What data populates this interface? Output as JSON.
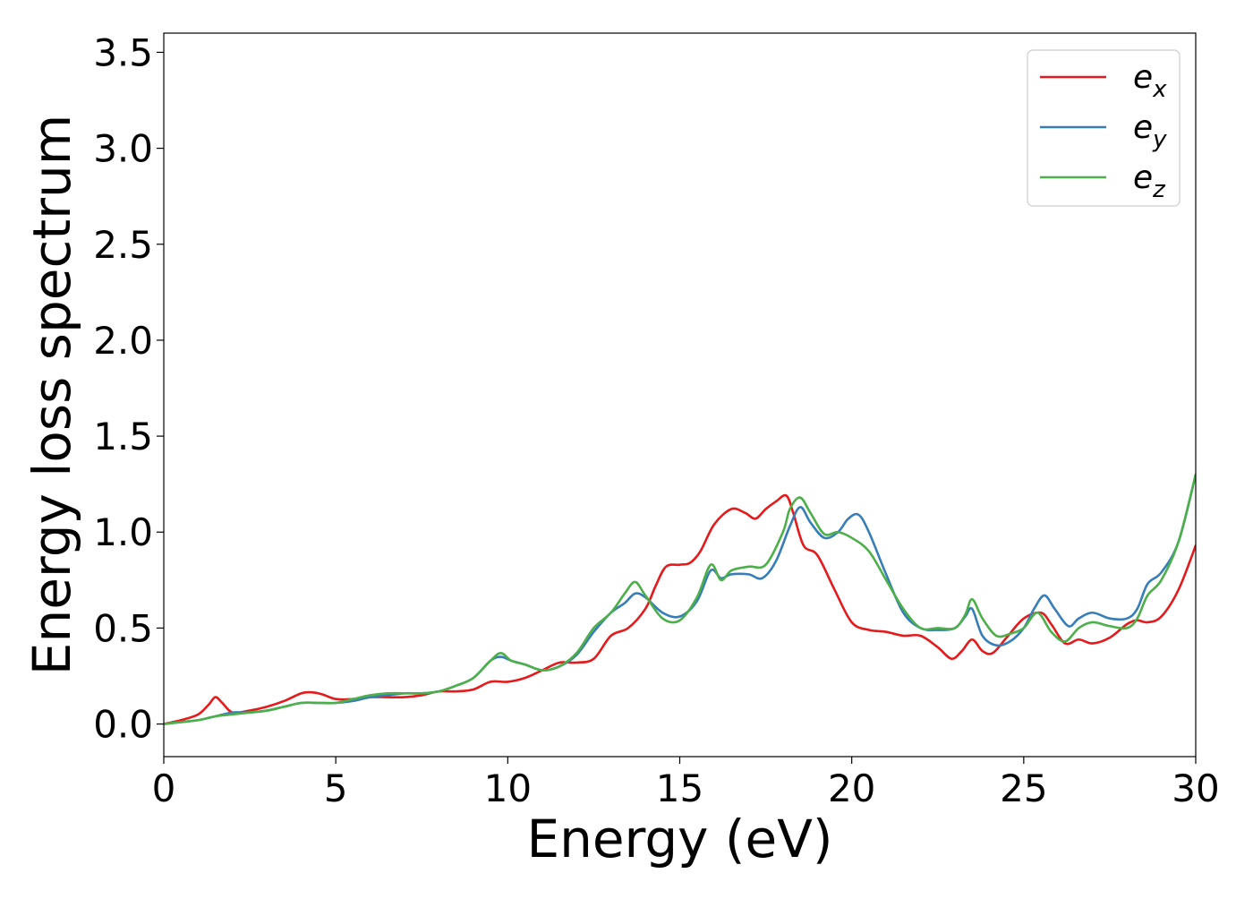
{
  "chart_data": {
    "type": "line",
    "title": "",
    "xlabel": "Energy (eV)",
    "ylabel": "Energy loss spectrum",
    "xlim": [
      0,
      30
    ],
    "ylim": [
      -0.17,
      3.6
    ],
    "xticks": [
      0,
      5,
      10,
      15,
      20,
      25,
      30
    ],
    "yticks": [
      0.0,
      0.5,
      1.0,
      1.5,
      2.0,
      2.5,
      3.0,
      3.5
    ],
    "xtick_labels": [
      "0",
      "5",
      "10",
      "15",
      "20",
      "25",
      "30"
    ],
    "ytick_labels": [
      "0.0",
      "0.5",
      "1.0",
      "1.5",
      "2.0",
      "2.5",
      "3.0",
      "3.5"
    ],
    "grid": false,
    "legend_position": "top-right",
    "series": [
      {
        "name": "e_x",
        "label_base": "e",
        "label_sub": "x",
        "color": "#e41a1c",
        "x": [
          0,
          0.5,
          1.0,
          1.3,
          1.5,
          1.7,
          2.0,
          2.5,
          3.0,
          3.5,
          4.0,
          4.3,
          4.6,
          5.0,
          5.5,
          6.0,
          6.5,
          7.0,
          7.5,
          8.0,
          8.5,
          9.0,
          9.5,
          10.0,
          10.5,
          11.0,
          11.5,
          12.0,
          12.5,
          13.0,
          13.5,
          14.0,
          14.3,
          14.6,
          15.0,
          15.3,
          15.6,
          16.0,
          16.5,
          16.9,
          17.2,
          17.5,
          17.8,
          18.1,
          18.3,
          18.6,
          19.0,
          19.5,
          20.0,
          20.5,
          21.0,
          21.5,
          22.0,
          22.5,
          22.9,
          23.2,
          23.5,
          23.8,
          24.1,
          24.5,
          25.0,
          25.5,
          25.8,
          26.2,
          26.6,
          27.0,
          27.5,
          28.0,
          28.3,
          28.6,
          29.0,
          29.5,
          30.0
        ],
        "y": [
          0.0,
          0.02,
          0.05,
          0.1,
          0.14,
          0.11,
          0.06,
          0.07,
          0.09,
          0.12,
          0.16,
          0.165,
          0.155,
          0.13,
          0.13,
          0.14,
          0.14,
          0.14,
          0.15,
          0.17,
          0.17,
          0.18,
          0.22,
          0.22,
          0.24,
          0.28,
          0.32,
          0.32,
          0.34,
          0.46,
          0.5,
          0.6,
          0.72,
          0.82,
          0.83,
          0.84,
          0.9,
          1.04,
          1.12,
          1.1,
          1.07,
          1.12,
          1.16,
          1.19,
          1.1,
          0.93,
          0.88,
          0.7,
          0.53,
          0.49,
          0.48,
          0.46,
          0.46,
          0.4,
          0.34,
          0.38,
          0.44,
          0.38,
          0.37,
          0.45,
          0.55,
          0.58,
          0.52,
          0.42,
          0.44,
          0.42,
          0.45,
          0.52,
          0.54,
          0.53,
          0.56,
          0.7,
          0.93
        ]
      },
      {
        "name": "e_y",
        "label_base": "e",
        "label_sub": "y",
        "color": "#377eb8",
        "x": [
          0,
          0.5,
          1.0,
          1.5,
          2.0,
          2.5,
          3.0,
          3.5,
          4.0,
          4.5,
          5.0,
          5.5,
          6.0,
          6.5,
          7.0,
          7.5,
          8.0,
          8.5,
          9.0,
          9.5,
          9.8,
          10.1,
          10.5,
          11.0,
          11.5,
          12.0,
          12.5,
          13.0,
          13.4,
          13.7,
          14.0,
          14.5,
          15.0,
          15.5,
          15.9,
          16.2,
          16.5,
          17.0,
          17.4,
          17.8,
          18.2,
          18.5,
          18.8,
          19.2,
          19.6,
          19.9,
          20.2,
          20.5,
          21.0,
          21.5,
          22.0,
          22.5,
          23.0,
          23.3,
          23.5,
          23.8,
          24.2,
          24.6,
          25.0,
          25.3,
          25.6,
          25.9,
          26.3,
          26.6,
          27.0,
          27.5,
          28.0,
          28.3,
          28.6,
          29.0,
          29.5,
          30.0
        ],
        "y": [
          0.0,
          0.01,
          0.02,
          0.04,
          0.06,
          0.06,
          0.07,
          0.09,
          0.11,
          0.11,
          0.11,
          0.12,
          0.14,
          0.15,
          0.16,
          0.16,
          0.17,
          0.2,
          0.24,
          0.33,
          0.35,
          0.33,
          0.31,
          0.28,
          0.3,
          0.36,
          0.48,
          0.58,
          0.63,
          0.68,
          0.66,
          0.58,
          0.56,
          0.64,
          0.8,
          0.76,
          0.78,
          0.78,
          0.76,
          0.85,
          1.03,
          1.13,
          1.05,
          0.97,
          1.0,
          1.07,
          1.09,
          1.0,
          0.78,
          0.58,
          0.5,
          0.49,
          0.5,
          0.56,
          0.6,
          0.46,
          0.41,
          0.43,
          0.5,
          0.6,
          0.67,
          0.6,
          0.51,
          0.55,
          0.58,
          0.55,
          0.55,
          0.6,
          0.73,
          0.79,
          0.95,
          1.3
        ]
      },
      {
        "name": "e_z",
        "label_base": "e",
        "label_sub": "z",
        "color": "#4daf4a",
        "x": [
          0,
          0.5,
          1.0,
          1.5,
          2.0,
          2.5,
          3.0,
          3.5,
          4.0,
          4.5,
          5.0,
          5.5,
          6.0,
          6.5,
          7.0,
          7.5,
          8.0,
          8.5,
          9.0,
          9.5,
          9.8,
          10.1,
          10.5,
          11.0,
          11.5,
          12.0,
          12.5,
          13.0,
          13.4,
          13.7,
          14.0,
          14.5,
          15.0,
          15.5,
          15.9,
          16.2,
          16.5,
          17.0,
          17.5,
          18.0,
          18.2,
          18.5,
          18.8,
          19.2,
          19.6,
          20.0,
          20.5,
          21.0,
          21.5,
          22.0,
          22.5,
          23.0,
          23.3,
          23.5,
          23.8,
          24.2,
          24.6,
          25.0,
          25.4,
          25.8,
          26.2,
          26.6,
          27.0,
          27.5,
          28.0,
          28.3,
          28.6,
          29.0,
          29.5,
          30.0
        ],
        "y": [
          0.0,
          0.01,
          0.02,
          0.04,
          0.05,
          0.06,
          0.07,
          0.09,
          0.11,
          0.11,
          0.11,
          0.13,
          0.15,
          0.16,
          0.16,
          0.16,
          0.17,
          0.2,
          0.24,
          0.33,
          0.37,
          0.33,
          0.31,
          0.28,
          0.3,
          0.37,
          0.5,
          0.58,
          0.68,
          0.74,
          0.67,
          0.55,
          0.54,
          0.66,
          0.83,
          0.75,
          0.8,
          0.82,
          0.83,
          1.0,
          1.12,
          1.18,
          1.1,
          0.99,
          1.0,
          0.97,
          0.9,
          0.75,
          0.6,
          0.5,
          0.5,
          0.5,
          0.57,
          0.65,
          0.55,
          0.46,
          0.47,
          0.5,
          0.58,
          0.48,
          0.43,
          0.5,
          0.53,
          0.51,
          0.5,
          0.55,
          0.67,
          0.75,
          0.95,
          1.3
        ]
      }
    ]
  }
}
